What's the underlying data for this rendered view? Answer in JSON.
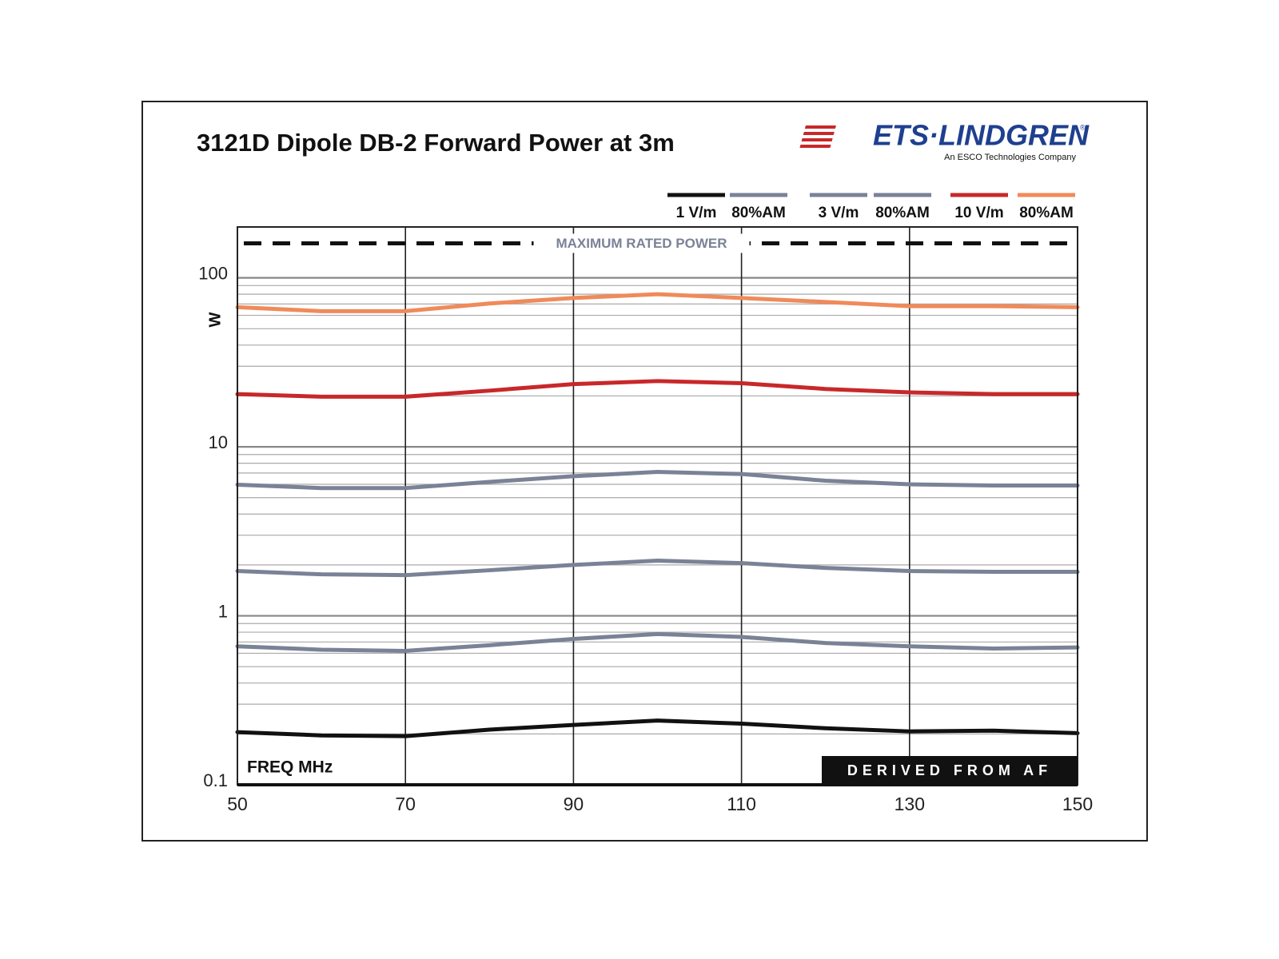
{
  "chart_data": {
    "type": "line",
    "title": "3121D Dipole DB-2 Forward Power at 3m",
    "logo": {
      "name": "ETS·LINDGREN",
      "mark": "®",
      "tagline": "An ESCO Technologies Company"
    },
    "x_label": "FREQ MHz",
    "y_label": "W",
    "note": "DERIVED FROM AF",
    "max_power": {
      "label": "MAXIMUM RATED POWER",
      "value": 160
    },
    "log_y": true,
    "grid": true,
    "x": [
      50,
      60,
      70,
      80,
      90,
      100,
      110,
      120,
      130,
      140,
      150
    ],
    "xlim": [
      50,
      150
    ],
    "xticks": [
      50,
      70,
      90,
      110,
      130,
      150
    ],
    "ylim": [
      0.1,
      200
    ],
    "yticks": [
      0.1,
      1,
      10,
      100
    ],
    "y_minor_ticks": [
      0.2,
      0.3,
      0.4,
      0.5,
      0.6,
      0.7,
      0.8,
      0.9,
      2,
      3,
      4,
      5,
      6,
      7,
      8,
      9,
      20,
      30,
      40,
      50,
      60,
      70,
      80,
      90,
      200
    ],
    "series": [
      {
        "name": "1 V/m",
        "color": "#111111",
        "values": [
          0.205,
          0.196,
          0.194,
          0.212,
          0.226,
          0.24,
          0.23,
          0.216,
          0.207,
          0.209,
          0.202
        ]
      },
      {
        "name": "80%AM",
        "color": "#7a8296",
        "values": [
          0.66,
          0.63,
          0.62,
          0.67,
          0.73,
          0.78,
          0.75,
          0.69,
          0.66,
          0.64,
          0.65
        ]
      },
      {
        "name": "3 V/m",
        "color": "#7a8296",
        "values": [
          1.84,
          1.76,
          1.74,
          1.86,
          2.0,
          2.12,
          2.05,
          1.92,
          1.84,
          1.82,
          1.82
        ]
      },
      {
        "name": "80%AM",
        "color": "#7a8296",
        "values": [
          5.97,
          5.7,
          5.7,
          6.2,
          6.7,
          7.1,
          6.9,
          6.3,
          6.0,
          5.9,
          5.9
        ]
      },
      {
        "name": "10 V/m",
        "color": "#c8282a",
        "values": [
          20.5,
          19.8,
          19.8,
          21.5,
          23.5,
          24.5,
          23.8,
          22,
          21,
          20.5,
          20.5
        ]
      },
      {
        "name": "80%AM",
        "color": "#f08a5a",
        "values": [
          67,
          63.5,
          63.5,
          70.5,
          76,
          80,
          76,
          72,
          68,
          68,
          67
        ]
      }
    ]
  }
}
